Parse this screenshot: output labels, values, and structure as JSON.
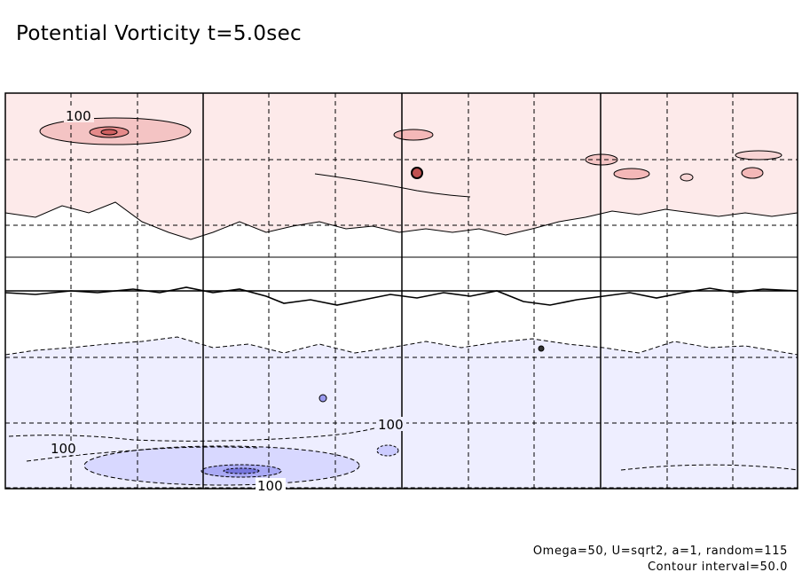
{
  "title": "Potential Vorticity  t=5.0sec",
  "footer": {
    "params": "Omega=50, U=sqrt2, a=1, random=115",
    "contour": "Contour interval=50.0"
  },
  "colors": {
    "positive_fill_light": "#fdeaea",
    "positive_fill_mid": "#f4b8b8",
    "positive_fill_core": "#e58a8a",
    "negative_fill_light": "#eeeeff",
    "negative_fill_mid": "#ccccff",
    "negative_fill_core": "#8888ee",
    "line": "#000000"
  },
  "chart_data": {
    "type": "heatmap",
    "title": "Potential Vorticity  t=5.0sec",
    "contour_interval": 50.0,
    "grid": true,
    "contour_labels": [
      {
        "id": "pos-100-top-left",
        "text": "100"
      },
      {
        "id": "neg-100-left",
        "text": "100"
      },
      {
        "id": "neg-100-center",
        "text": "100"
      },
      {
        "id": "neg-100-bottom",
        "text": "100"
      }
    ],
    "bands": [
      {
        "name": "positive region",
        "sign": "+"
      },
      {
        "name": "negative region",
        "sign": "-"
      }
    ]
  }
}
